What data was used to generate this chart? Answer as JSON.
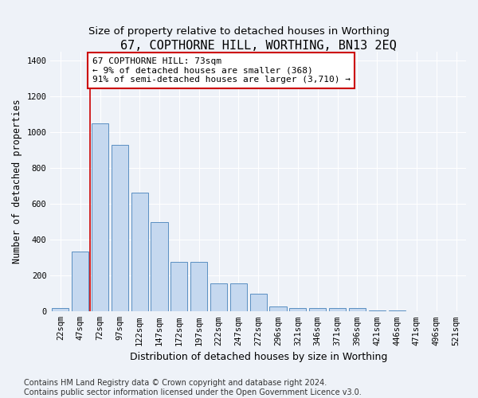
{
  "title": "67, COPTHORNE HILL, WORTHING, BN13 2EQ",
  "subtitle": "Size of property relative to detached houses in Worthing",
  "xlabel": "Distribution of detached houses by size in Worthing",
  "ylabel": "Number of detached properties",
  "categories": [
    "22sqm",
    "47sqm",
    "72sqm",
    "97sqm",
    "122sqm",
    "147sqm",
    "172sqm",
    "197sqm",
    "222sqm",
    "247sqm",
    "272sqm",
    "296sqm",
    "321sqm",
    "346sqm",
    "371sqm",
    "396sqm",
    "421sqm",
    "446sqm",
    "471sqm",
    "496sqm",
    "521sqm"
  ],
  "bar_heights": [
    20,
    335,
    1050,
    930,
    665,
    500,
    275,
    275,
    155,
    155,
    100,
    30,
    20,
    20,
    20,
    20,
    5,
    5,
    0,
    0,
    0
  ],
  "bar_color": "#c5d8ef",
  "bar_edge_color": "#5a8fc2",
  "red_line_x": 1.5,
  "highlight_line_color": "#cc0000",
  "annotation_text": "67 COPTHORNE HILL: 73sqm\n← 9% of detached houses are smaller (368)\n91% of semi-detached houses are larger (3,710) →",
  "annotation_box_color": "white",
  "annotation_box_edge_color": "#cc0000",
  "ylim": [
    0,
    1450
  ],
  "yticks": [
    0,
    200,
    400,
    600,
    800,
    1000,
    1200,
    1400
  ],
  "footer_text": "Contains HM Land Registry data © Crown copyright and database right 2024.\nContains public sector information licensed under the Open Government Licence v3.0.",
  "bg_color": "#eef2f8",
  "grid_color": "#ffffff",
  "title_fontsize": 11,
  "subtitle_fontsize": 9.5,
  "label_fontsize": 9,
  "tick_fontsize": 7.5,
  "footer_fontsize": 7,
  "annotation_fontsize": 8,
  "ylabel_fontsize": 8.5
}
